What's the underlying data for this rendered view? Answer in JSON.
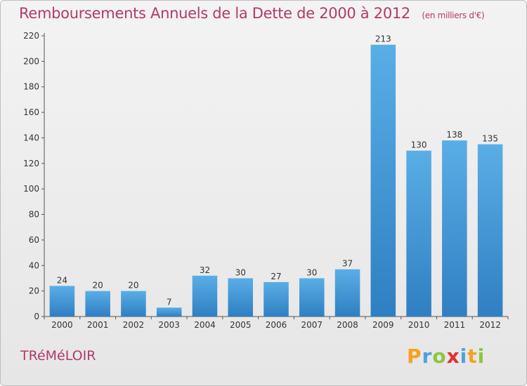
{
  "chart_data": {
    "type": "bar",
    "title": "Remboursements Annuels de la Dette de 2000 à 2012",
    "subtitle": "(en milliers d'€)",
    "categories": [
      "2000",
      "2001",
      "2002",
      "2003",
      "2004",
      "2005",
      "2006",
      "2007",
      "2008",
      "2009",
      "2010",
      "2011",
      "2012"
    ],
    "values": [
      24,
      20,
      20,
      7,
      32,
      30,
      27,
      30,
      37,
      213,
      130,
      138,
      135
    ],
    "ylim": [
      0,
      220
    ],
    "yticks": [
      0,
      20,
      40,
      60,
      80,
      100,
      120,
      140,
      160,
      180,
      200,
      220
    ],
    "grid": false,
    "bar_color": "#3d8fd4"
  },
  "footer": {
    "commune": "TRéMéLOIR",
    "logo_letters": [
      "P",
      "r",
      "o",
      "x",
      "i",
      "t",
      "i"
    ],
    "logo_colors": [
      "#f7a21b",
      "#4aa3df",
      "#8cc63e",
      "#e5302f",
      "#4aa3df",
      "#f7a21b",
      "#8cc63e"
    ]
  }
}
